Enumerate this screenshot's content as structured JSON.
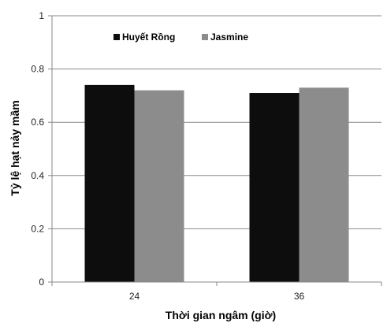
{
  "chart_data": {
    "type": "bar",
    "categories": [
      "24",
      "36"
    ],
    "series": [
      {
        "name": "Huyết Rồng",
        "values": [
          0.74,
          0.71
        ],
        "color": "#0d0d0d"
      },
      {
        "name": "Jasmine",
        "values": [
          0.72,
          0.73
        ],
        "color": "#8c8c8c"
      }
    ],
    "xlabel": "Thời gian ngâm (giờ)",
    "ylabel": "Tỷ lệ hạt nảy mầm",
    "ylim": [
      0,
      1
    ],
    "yticks": [
      "0",
      "0.2",
      "0.4",
      "0.6",
      "0.8",
      "1"
    ],
    "ytick_values": [
      0,
      0.2,
      0.4,
      0.6,
      0.8,
      1
    ],
    "grid": true,
    "legend_position": "top-left"
  }
}
